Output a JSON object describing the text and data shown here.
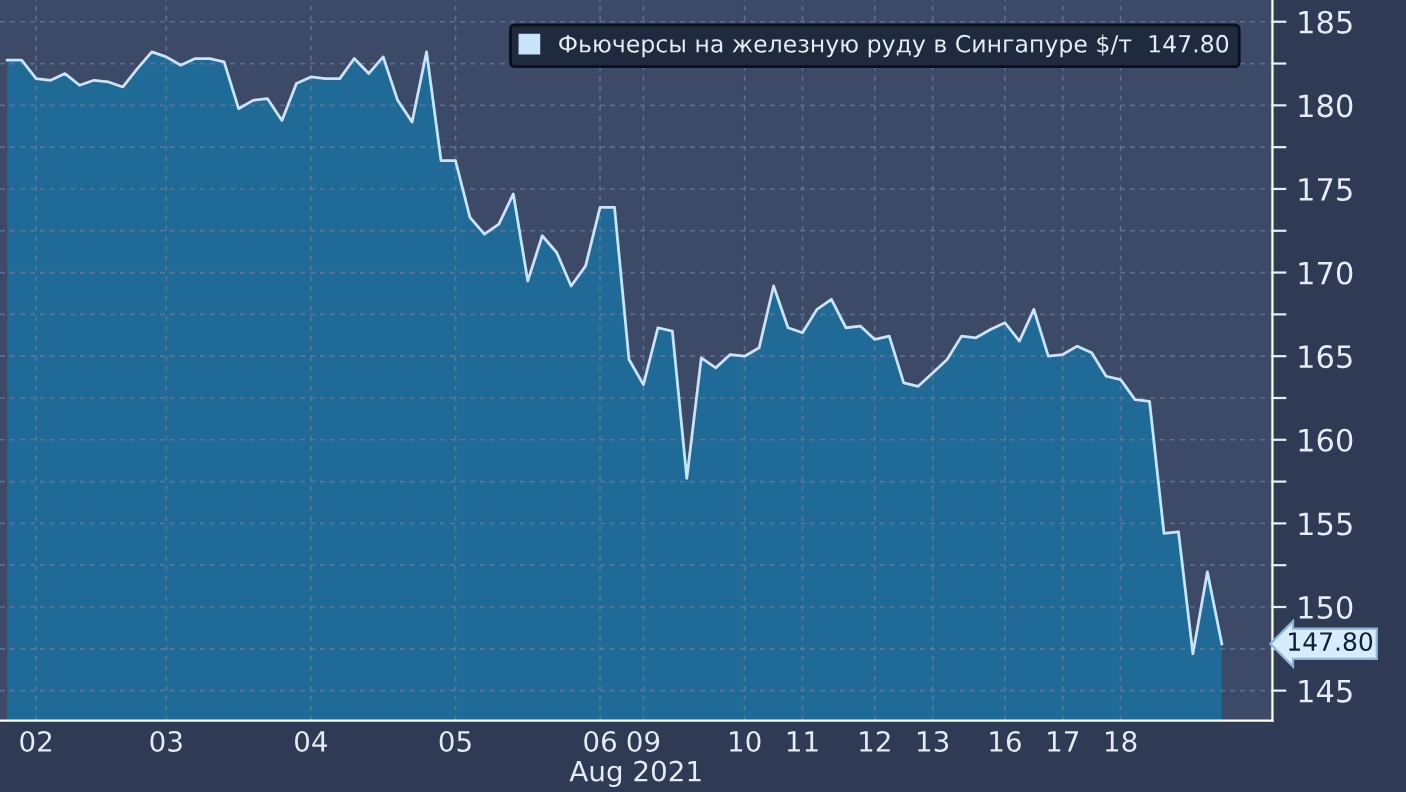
{
  "chart_data": {
    "type": "area",
    "xlabel": "Aug 2021",
    "legend": "top right",
    "grid": true,
    "ylim": [
      143.2,
      186.3
    ],
    "yticks": [
      145,
      {
        "value": 147.5,
        "label": null
      },
      150,
      {
        "value": 152.5,
        "label": null
      },
      155,
      {
        "value": 157.5,
        "label": null
      },
      160,
      {
        "value": 162.5,
        "label": null
      },
      165,
      {
        "value": 167.5,
        "label": null
      },
      170,
      {
        "value": 172.5,
        "label": null
      },
      175,
      {
        "value": 177.5,
        "label": null
      },
      180,
      {
        "value": 182.5,
        "label": null
      },
      185
    ],
    "annotations": [
      "147.80"
    ],
    "categories": [
      null,
      null,
      "02",
      null,
      null,
      null,
      null,
      null,
      null,
      null,
      null,
      "03",
      null,
      null,
      null,
      null,
      null,
      null,
      null,
      null,
      null,
      "04",
      null,
      null,
      null,
      null,
      null,
      null,
      null,
      null,
      null,
      "05",
      null,
      null,
      null,
      null,
      null,
      null,
      null,
      null,
      null,
      "06",
      null,
      null,
      "09",
      null,
      null,
      null,
      null,
      null,
      null,
      "10",
      null,
      null,
      null,
      "11",
      null,
      null,
      null,
      null,
      "12",
      null,
      null,
      null,
      "13",
      null,
      null,
      null,
      null,
      "16",
      null,
      null,
      null,
      "17",
      null,
      null,
      null,
      "18",
      null,
      null,
      null,
      null,
      null,
      null,
      null
    ],
    "series": [
      {
        "name": "Фьючерсы на железную руду в Сингапуре $/т  147.80",
        "color": "#c8e4fa",
        "values": [
          182.7,
          182.7,
          181.6,
          181.5,
          181.9,
          181.2,
          181.5,
          181.4,
          181.1,
          182.2,
          183.2,
          182.9,
          182.4,
          182.8,
          182.8,
          182.6,
          179.8,
          180.3,
          180.4,
          179.1,
          181.3,
          181.7,
          181.6,
          181.6,
          182.8,
          181.9,
          182.9,
          180.3,
          179.0,
          183.2,
          176.7,
          176.7,
          173.3,
          172.3,
          172.9,
          174.7,
          169.5,
          172.2,
          171.2,
          169.2,
          170.4,
          173.9,
          173.9,
          164.8,
          163.3,
          166.7,
          166.5,
          157.7,
          164.9,
          164.3,
          165.1,
          165.0,
          165.5,
          169.2,
          166.7,
          166.4,
          167.8,
          168.4,
          166.7,
          166.8,
          166.0,
          166.2,
          163.4,
          163.2,
          164.0,
          164.8,
          166.2,
          166.1,
          166.6,
          167.0,
          165.9,
          167.8,
          165.0,
          165.1,
          165.6,
          165.2,
          163.8,
          163.6,
          162.4,
          162.3,
          154.4,
          154.5,
          147.2,
          152.1,
          147.8
        ]
      }
    ]
  }
}
